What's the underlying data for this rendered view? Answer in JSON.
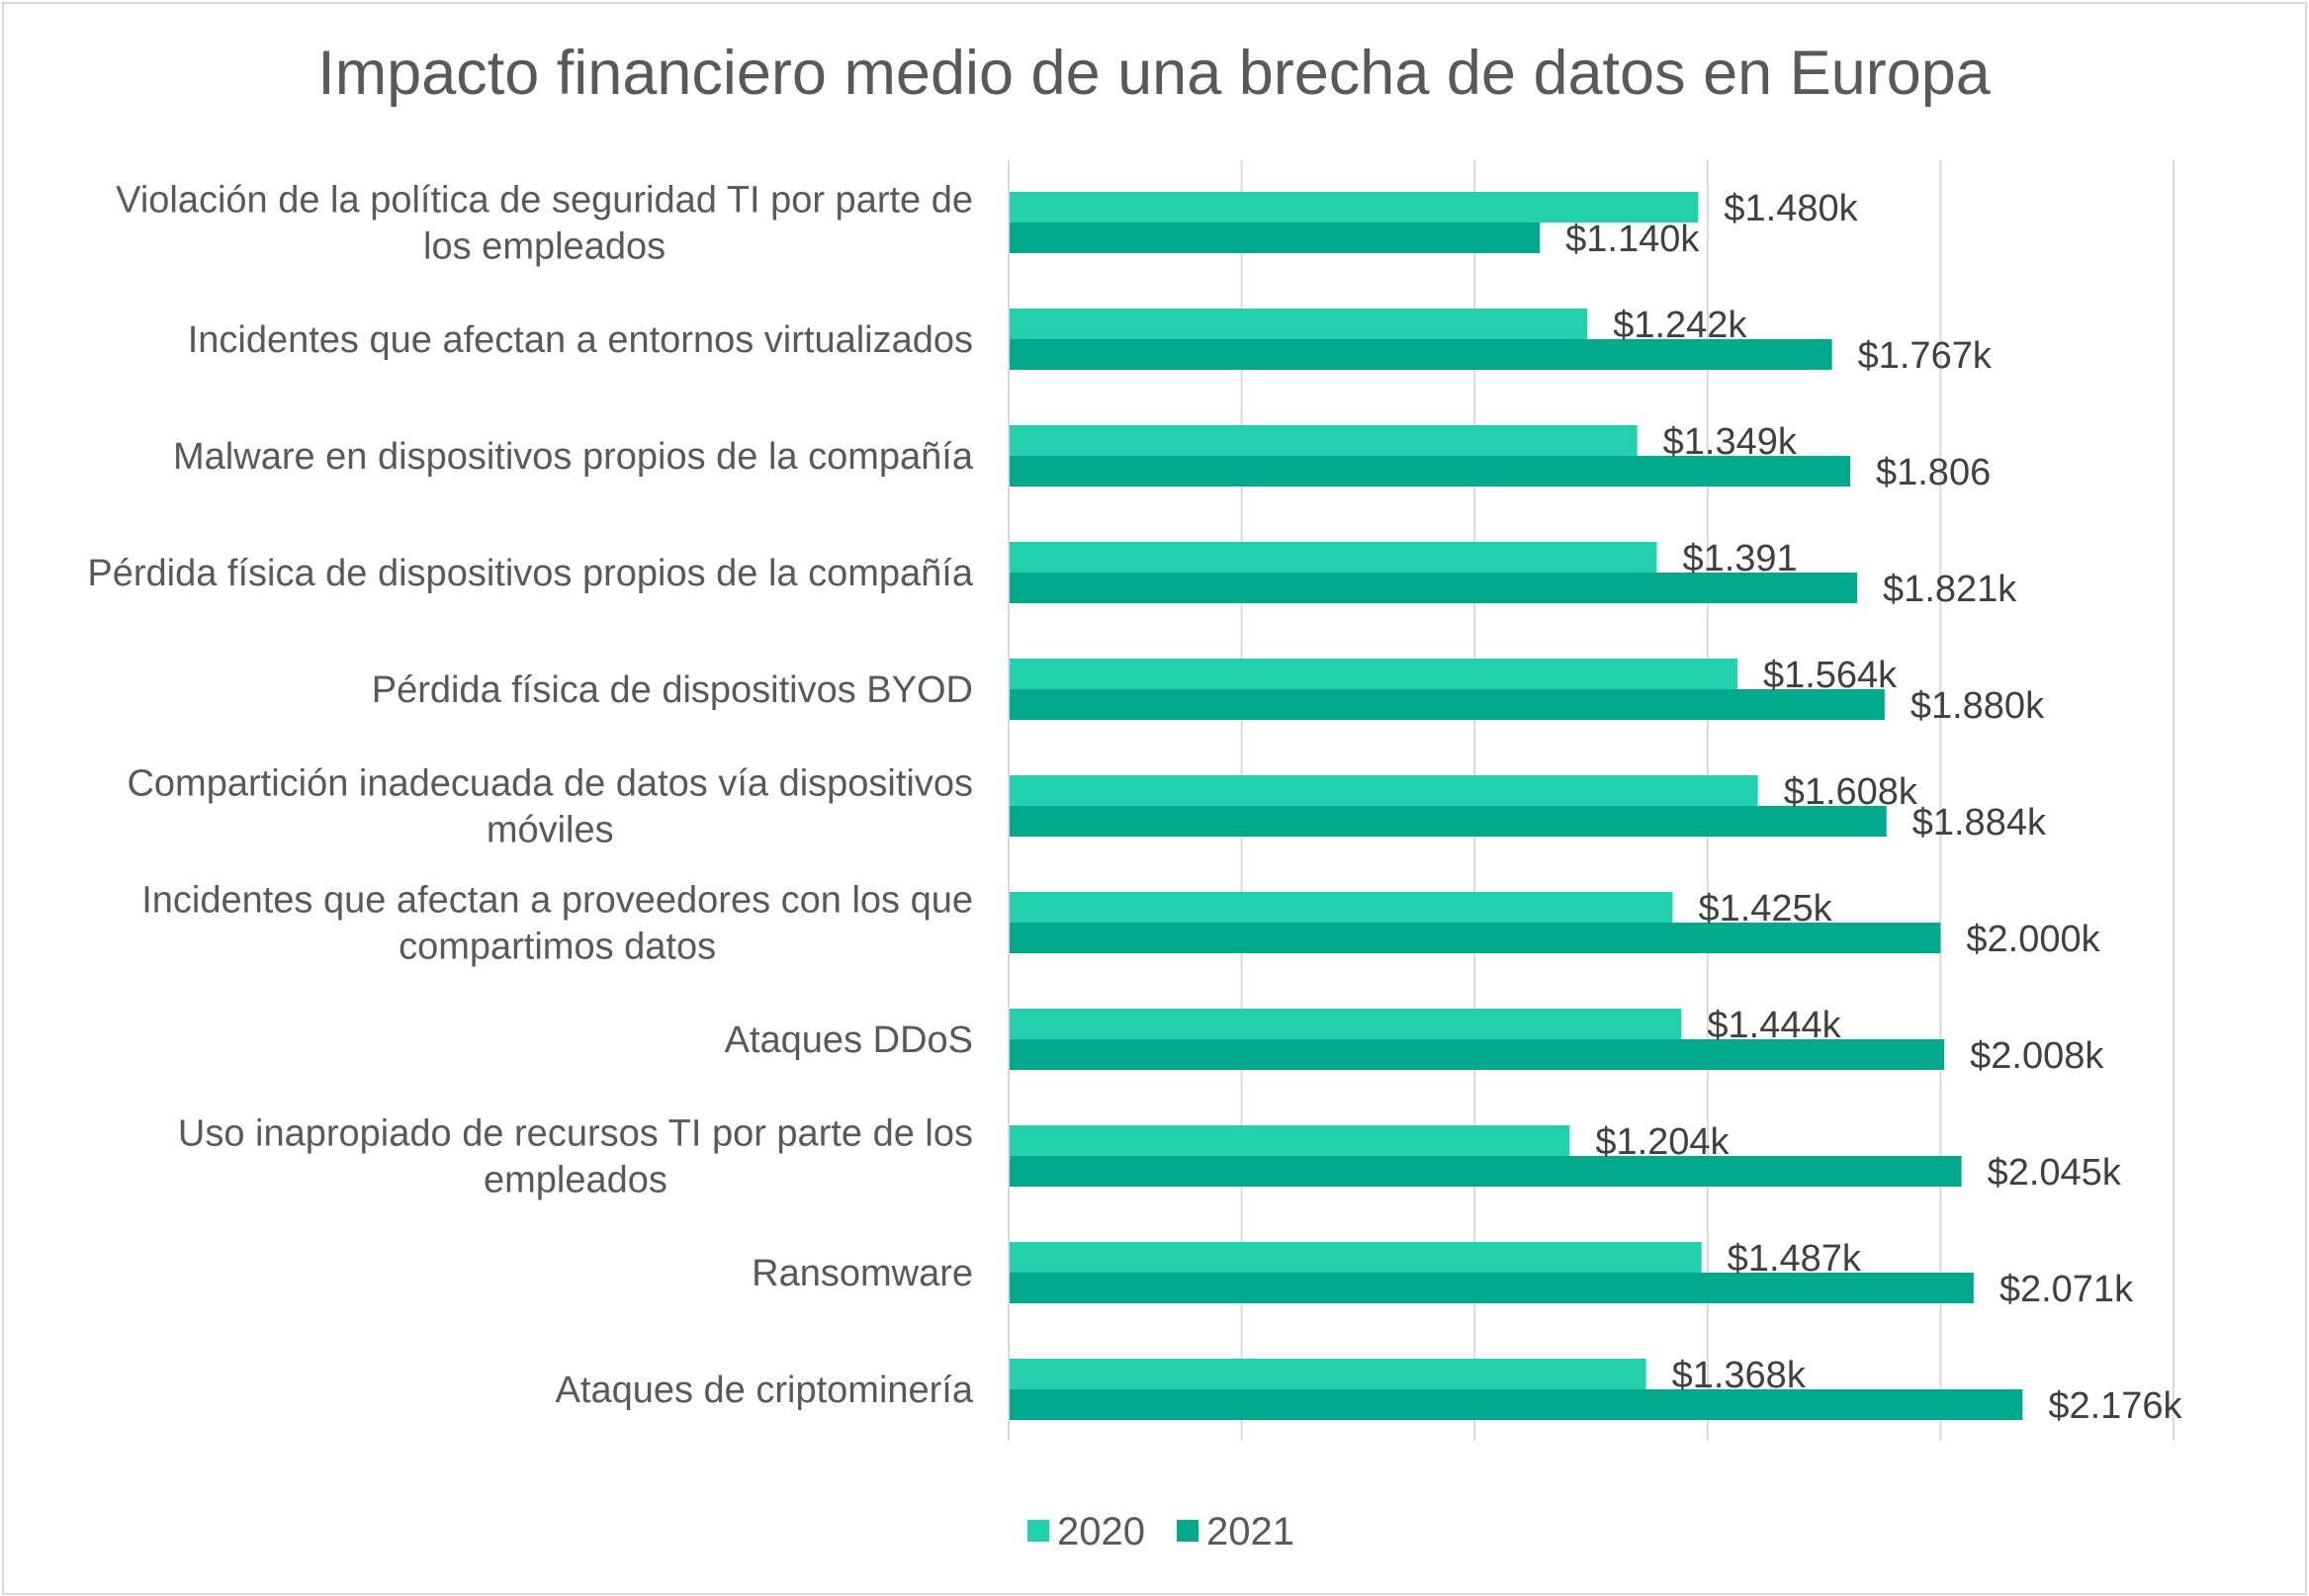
{
  "chart_data": {
    "type": "bar",
    "orientation": "horizontal",
    "title": "Impacto financiero medio de una brecha de datos en Europa",
    "xlabel": "",
    "ylabel": "",
    "xlim": [
      0,
      2500
    ],
    "grid": true,
    "legend_position": "bottom",
    "categories": [
      "Violación de la política de seguridad TI por parte de los empleados",
      "Incidentes que afectan a entornos virtualizados",
      "Malware en dispositivos propios de la compañía",
      "Pérdida física de dispositivos propios de la compañía",
      "Pérdida física de dispositivos BYOD",
      "Compartición inadecuada de datos vía dispositivos móviles",
      "Incidentes que afectan a proveedores con los que compartimos datos",
      "Ataques DDoS",
      "Uso inapropiado de recursos TI por parte de los empleados",
      "Ransomware",
      "Ataques de criptominería"
    ],
    "category_lines": [
      [
        "Violación de la política de seguridad TI por parte de",
        "los empleados"
      ],
      [
        "Incidentes que afectan a entornos virtualizados"
      ],
      [
        "Malware en dispositivos propios de la compañía"
      ],
      [
        "Pérdida física de dispositivos propios de la compañía"
      ],
      [
        "Pérdida física de dispositivos BYOD"
      ],
      [
        "Compartición inadecuada de datos vía dispositivos",
        "móviles"
      ],
      [
        "Incidentes que afectan a proveedores con los que",
        "compartimos datos"
      ],
      [
        "Ataques DDoS"
      ],
      [
        "Uso inapropiado de recursos TI por parte de los",
        "empleados"
      ],
      [
        "Ransomware"
      ],
      [
        "Ataques de criptominería"
      ]
    ],
    "series": [
      {
        "name": "2020",
        "color": "#23d0ad",
        "values": [
          1480,
          1242,
          1349,
          1391,
          1564,
          1608,
          1425,
          1444,
          1204,
          1487,
          1368
        ],
        "labels": [
          "$1.480k",
          "$1.242k",
          "$1.349k",
          "$1.391",
          "$1.564k",
          "$1.608k",
          "$1.425k",
          "$1.444k",
          "$1.204k",
          "$1.487k",
          "$1.368k"
        ]
      },
      {
        "name": "2021",
        "color": "#00a88c",
        "values": [
          1140,
          1767,
          1806,
          1821,
          1880,
          1884,
          2000,
          2008,
          2045,
          2071,
          2176
        ],
        "labels": [
          "$1.140k",
          "$1.767k",
          "$1.806",
          "$1.821k",
          "$1.880k",
          "$1.884k",
          "$2.000k",
          "$2.008k",
          "$2.045k",
          "$2.071k",
          "$2.176k"
        ]
      }
    ]
  }
}
